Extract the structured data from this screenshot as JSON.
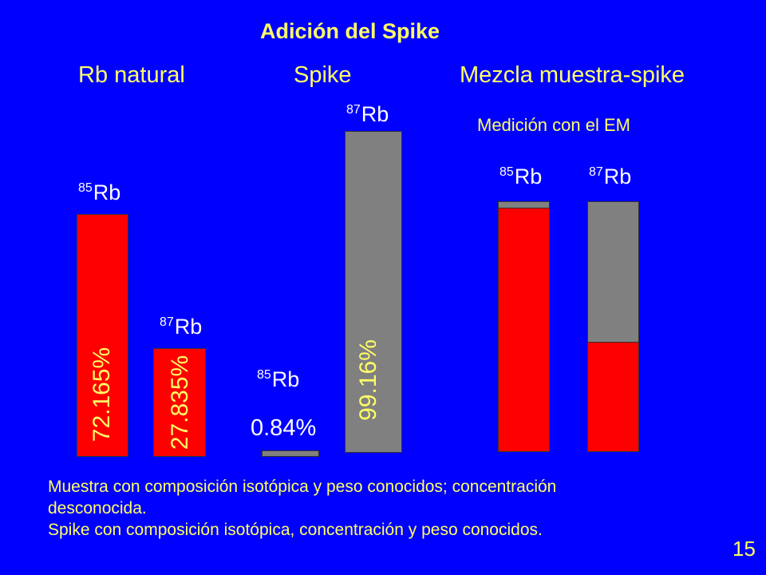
{
  "title": "Adición del Spike",
  "columns": {
    "natural": "Rb natural",
    "spike": "Spike",
    "mezcla": "Mezcla muestra-spike"
  },
  "measurement_label": "Medición con el EM",
  "isotopes": {
    "rb85_mass": "85",
    "rb87_mass": "87",
    "symbol": "Rb"
  },
  "bars": {
    "natural_85_pct": "72.165%",
    "natural_87_pct": "27.835%",
    "spike_85_pct": "0.84%",
    "spike_87_pct": "99.16%"
  },
  "colors": {
    "background": "#0000FF",
    "sample": "#FF0000",
    "spike": "#808080",
    "text_yellow": "#FFFF66",
    "text_white": "#FFFFFF"
  },
  "notes": {
    "line1": "Muestra con composición isotópica y peso conocidos; concentración",
    "line2": "desconocida.",
    "line3": "Spike con composición isotópica, concentración y peso conocidos."
  },
  "page_number": "15"
}
